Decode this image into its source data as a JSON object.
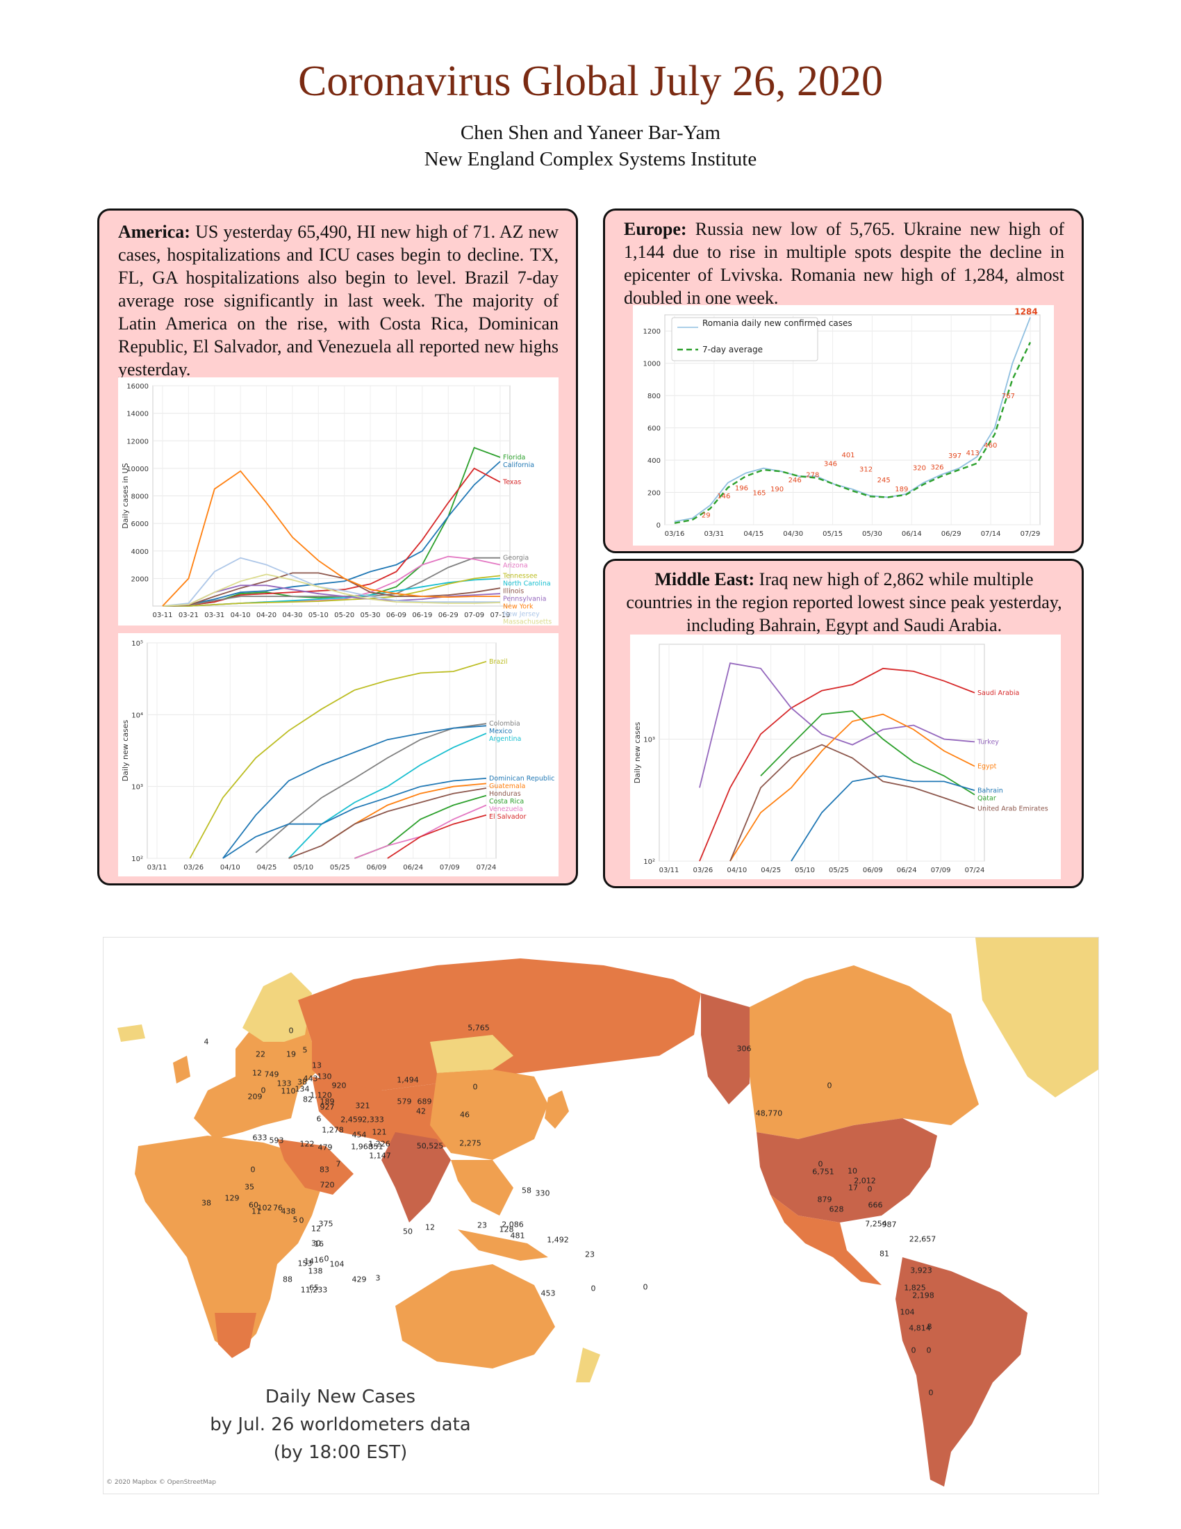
{
  "header": {
    "title": "Coronavirus Global July 26, 2020",
    "authors": "Chen Shen and Yaneer Bar-Yam",
    "affiliation": "New England Complex Systems Institute"
  },
  "boxes": {
    "america": {
      "heading": "America:",
      "text": " US yesterday 65,490, HI new high of 71. AZ new cases, hospitalizations and ICU cases begin to decline. TX, FL, GA hospitalizations also begin to level. Brazil 7-day average rose significantly in last week. The majority of Latin America on the rise, with Costa Rica, Dominican Republic, El Salvador, and Venezuela all reported new highs yesterday."
    },
    "europe": {
      "heading": "Europe:",
      "text": " Russia new low of 5,765. Ukraine new high of 1,144 due to rise in multiple spots despite the decline in epicenter of Lvivska. Romania new high of 1,284, almost doubled in one week."
    },
    "middle_east": {
      "heading": "Middle East:",
      "text": " Iraq new high of 2,862 while multiple countries in the region reported lowest since peak yesterday, including Bahrain, Egypt and Saudi Arabia."
    }
  },
  "chart_data": [
    {
      "type": "line",
      "ylabel": "Daily cases in US",
      "xticks": [
        "03-11",
        "03-21",
        "03-31",
        "04-10",
        "04-20",
        "04-30",
        "05-10",
        "05-20",
        "05-30",
        "06-09",
        "06-19",
        "06-29",
        "07-09",
        "07-19"
      ],
      "yticks": [
        2000,
        4000,
        6000,
        8000,
        10000,
        12000,
        14000,
        16000
      ],
      "ylim": [
        0,
        16000
      ],
      "series": [
        {
          "name": "Florida",
          "color": "#2ca02c",
          "values": [
            0,
            50,
            300,
            900,
            1000,
            700,
            600,
            700,
            800,
            1400,
            3000,
            6500,
            11500,
            10800
          ]
        },
        {
          "name": "California",
          "color": "#1f77b4",
          "values": [
            0,
            100,
            500,
            1000,
            1100,
            1400,
            1600,
            1800,
            2500,
            3000,
            4000,
            6500,
            8800,
            10500
          ]
        },
        {
          "name": "Texas",
          "color": "#d62728",
          "values": [
            0,
            50,
            300,
            800,
            900,
            1000,
            1100,
            1200,
            1600,
            2500,
            4800,
            7500,
            10000,
            9000
          ]
        },
        {
          "name": "Georgia",
          "color": "#7f7f7f",
          "values": [
            0,
            50,
            400,
            700,
            700,
            700,
            700,
            700,
            700,
            900,
            1800,
            2800,
            3500,
            3500
          ]
        },
        {
          "name": "Arizona",
          "color": "#e377c2",
          "values": [
            0,
            0,
            100,
            200,
            300,
            350,
            400,
            500,
            1000,
            1800,
            3000,
            3600,
            3400,
            3000
          ]
        },
        {
          "name": "North Carolina",
          "color": "#17becf",
          "values": [
            0,
            0,
            100,
            200,
            300,
            400,
            500,
            600,
            800,
            1100,
            1400,
            1700,
            1900,
            2000
          ]
        },
        {
          "name": "Tennessee",
          "color": "#bcbd22",
          "values": [
            0,
            0,
            100,
            200,
            250,
            300,
            350,
            450,
            550,
            700,
            1100,
            1600,
            2000,
            2200
          ]
        },
        {
          "name": "Illinois",
          "color": "#8c564b",
          "values": [
            0,
            50,
            700,
            1300,
            1800,
            2400,
            2400,
            2000,
            1000,
            700,
            700,
            800,
            1000,
            1300
          ]
        },
        {
          "name": "Pennsylvania",
          "color": "#9467bd",
          "values": [
            0,
            100,
            1000,
            1500,
            1500,
            1200,
            900,
            700,
            500,
            400,
            500,
            700,
            800,
            900
          ]
        },
        {
          "name": "New Jersey",
          "color": "#aec7e8",
          "values": [
            0,
            200,
            2500,
            3500,
            3000,
            2200,
            1400,
            1100,
            700,
            400,
            300,
            300,
            300,
            300
          ]
        },
        {
          "name": "Massachusetts",
          "color": "#dbdb8d",
          "values": [
            0,
            100,
            1000,
            1800,
            2300,
            1900,
            1400,
            900,
            500,
            300,
            250,
            200,
            200,
            250
          ]
        },
        {
          "name": "New York",
          "color": "#ff7f0e",
          "values": [
            0,
            2000,
            8500,
            9800,
            7500,
            5000,
            3300,
            2000,
            1200,
            900,
            700,
            650,
            700,
            700
          ]
        }
      ]
    },
    {
      "type": "line",
      "yscale": "log",
      "ylabel": "Daily new cases",
      "xticks": [
        "03/11",
        "03/26",
        "04/10",
        "04/25",
        "05/10",
        "05/25",
        "06/09",
        "06/24",
        "07/09",
        "07/24"
      ],
      "yticks": [
        "10²",
        "10³",
        "10⁴",
        "10⁵"
      ],
      "ylim": [
        100,
        100000
      ],
      "series": [
        {
          "name": "Brazil",
          "color": "#bcbd22",
          "values": [
            null,
            100,
            700,
            2500,
            6000,
            12000,
            22000,
            30000,
            38000,
            40000,
            55000
          ]
        },
        {
          "name": "Colombia",
          "color": "#7f7f7f",
          "values": [
            null,
            null,
            null,
            120,
            300,
            700,
            1300,
            2500,
            4500,
            6500,
            7500
          ]
        },
        {
          "name": "Mexico",
          "color": "#1f77b4",
          "values": [
            null,
            null,
            100,
            400,
            1200,
            2000,
            3000,
            4500,
            5500,
            6500,
            7000
          ]
        },
        {
          "name": "Argentina",
          "color": "#17becf",
          "values": [
            null,
            null,
            null,
            null,
            100,
            300,
            600,
            1000,
            2000,
            3500,
            5500
          ]
        },
        {
          "name": "Dominican Republic",
          "color": "#1f77b4",
          "values": [
            null,
            null,
            100,
            200,
            300,
            300,
            500,
            700,
            1000,
            1200,
            1300
          ]
        },
        {
          "name": "Guatemala",
          "color": "#ff7f0e",
          "values": [
            null,
            null,
            null,
            null,
            null,
            150,
            300,
            550,
            800,
            1000,
            1100
          ]
        },
        {
          "name": "Honduras",
          "color": "#8c564b",
          "values": [
            null,
            null,
            null,
            null,
            100,
            150,
            300,
            450,
            600,
            800,
            950
          ]
        },
        {
          "name": "Costa Rica",
          "color": "#2ca02c",
          "values": [
            null,
            null,
            null,
            null,
            null,
            null,
            100,
            150,
            350,
            550,
            750
          ]
        },
        {
          "name": "Venezuela",
          "color": "#e377c2",
          "values": [
            null,
            null,
            null,
            null,
            null,
            null,
            100,
            150,
            200,
            350,
            550
          ]
        },
        {
          "name": "El Salvador",
          "color": "#d62728",
          "values": [
            null,
            null,
            null,
            null,
            null,
            null,
            null,
            100,
            200,
            300,
            400
          ]
        }
      ]
    },
    {
      "type": "line",
      "xticks": [
        "03/16",
        "03/31",
        "04/15",
        "04/30",
        "05/15",
        "05/30",
        "06/14",
        "06/29",
        "07/14",
        "07/29"
      ],
      "yticks": [
        0,
        200,
        400,
        600,
        800,
        1000,
        1200
      ],
      "ylim": [
        0,
        1300
      ],
      "legend": [
        "Romania daily new confirmed cases",
        "7-day average"
      ],
      "data_labels": [
        "1284",
        "767",
        "460",
        "413",
        "397",
        "326",
        "320",
        "189",
        "245",
        "312",
        "401",
        "346",
        "278",
        "246",
        "190",
        "165",
        "196",
        "146",
        "29"
      ],
      "series": [
        {
          "name": "Romania daily new confirmed cases",
          "color": "#8fbfe0",
          "values": [
            20,
            40,
            120,
            260,
            320,
            350,
            330,
            300,
            300,
            250,
            220,
            180,
            170,
            190,
            260,
            310,
            350,
            420,
            600,
            1000,
            1284
          ]
        },
        {
          "name": "7-day average",
          "color": "#2ca02c",
          "values": [
            10,
            30,
            100,
            230,
            300,
            340,
            330,
            300,
            290,
            250,
            210,
            175,
            170,
            185,
            250,
            300,
            340,
            380,
            560,
            900,
            1130
          ]
        }
      ]
    },
    {
      "type": "line",
      "yscale": "log",
      "ylabel": "Daily new cases",
      "xticks": [
        "03/11",
        "03/26",
        "04/10",
        "04/25",
        "05/10",
        "05/25",
        "06/09",
        "06/24",
        "07/09",
        "07/24"
      ],
      "yticks": [
        "10²",
        "10³"
      ],
      "ylim": [
        100,
        6000
      ],
      "series": [
        {
          "name": "Saudi Arabia",
          "color": "#d62728",
          "values": [
            null,
            100,
            400,
            1100,
            1800,
            2500,
            2800,
            3800,
            3600,
            3000,
            2400
          ]
        },
        {
          "name": "Turkey",
          "color": "#9467bd",
          "values": [
            null,
            400,
            4200,
            3800,
            1800,
            1100,
            900,
            1200,
            1300,
            1000,
            950
          ]
        },
        {
          "name": "Egypt",
          "color": "#ff7f0e",
          "values": [
            null,
            null,
            100,
            250,
            400,
            800,
            1400,
            1600,
            1200,
            800,
            600
          ]
        },
        {
          "name": "Qatar",
          "color": "#2ca02c",
          "values": [
            null,
            null,
            null,
            500,
            900,
            1600,
            1700,
            1000,
            650,
            500,
            350
          ]
        },
        {
          "name": "Bahrain",
          "color": "#1f77b4",
          "values": [
            null,
            null,
            null,
            null,
            100,
            250,
            450,
            500,
            450,
            450,
            380
          ]
        },
        {
          "name": "United Arab Emirates",
          "color": "#8c564b",
          "values": [
            null,
            null,
            100,
            400,
            700,
            900,
            700,
            450,
            400,
            330,
            270
          ]
        }
      ]
    }
  ],
  "map": {
    "caption_lines": [
      "Daily New Cases",
      "by Jul. 26 worldometers data",
      "(by 18:00 EST)"
    ],
    "credit": "© 2020 Mapbox © OpenStreetMap",
    "colors": {
      "low": "#f2d57e",
      "mid": "#f0a050",
      "high": "#e47a45",
      "top": "#c8644a",
      "ocean": "#ffffff"
    },
    "labels": [
      "5,765",
      "1,494",
      "0",
      "306",
      "48,770",
      "0",
      "46",
      "50,525",
      "2,275",
      "579",
      "689",
      "42",
      "321",
      "2,459",
      "2,333",
      "121",
      "1,226",
      "1,968",
      "351",
      "1,147",
      "454",
      "1,278",
      "6",
      "927",
      "920",
      "1,120",
      "189",
      "443",
      "130",
      "13",
      "82",
      "134",
      "38",
      "133",
      "110",
      "749",
      "12",
      "0",
      "19",
      "22",
      "4",
      "5",
      "0",
      "209",
      "593",
      "633",
      "122",
      "479",
      "83",
      "720",
      "7",
      "0",
      "35",
      "129",
      "38",
      "60",
      "11",
      "102",
      "76",
      "438",
      "5",
      "0",
      "12",
      "375",
      "30",
      "16",
      "0",
      "14",
      "16",
      "104",
      "153",
      "138",
      "88",
      "65",
      "11,233",
      "429",
      "3",
      "50",
      "12",
      "23",
      "128",
      "2,086",
      "58",
      "330",
      "481",
      "1,492",
      "23",
      "453",
      "0",
      "0",
      "0",
      "6,751",
      "879",
      "628",
      "2,012",
      "10",
      "17",
      "0",
      "666",
      "7,254",
      "987",
      "81",
      "22,657",
      "3,923",
      "1,825",
      "2,198",
      "104",
      "4,814",
      "8",
      "0",
      "0",
      "0"
    ]
  }
}
